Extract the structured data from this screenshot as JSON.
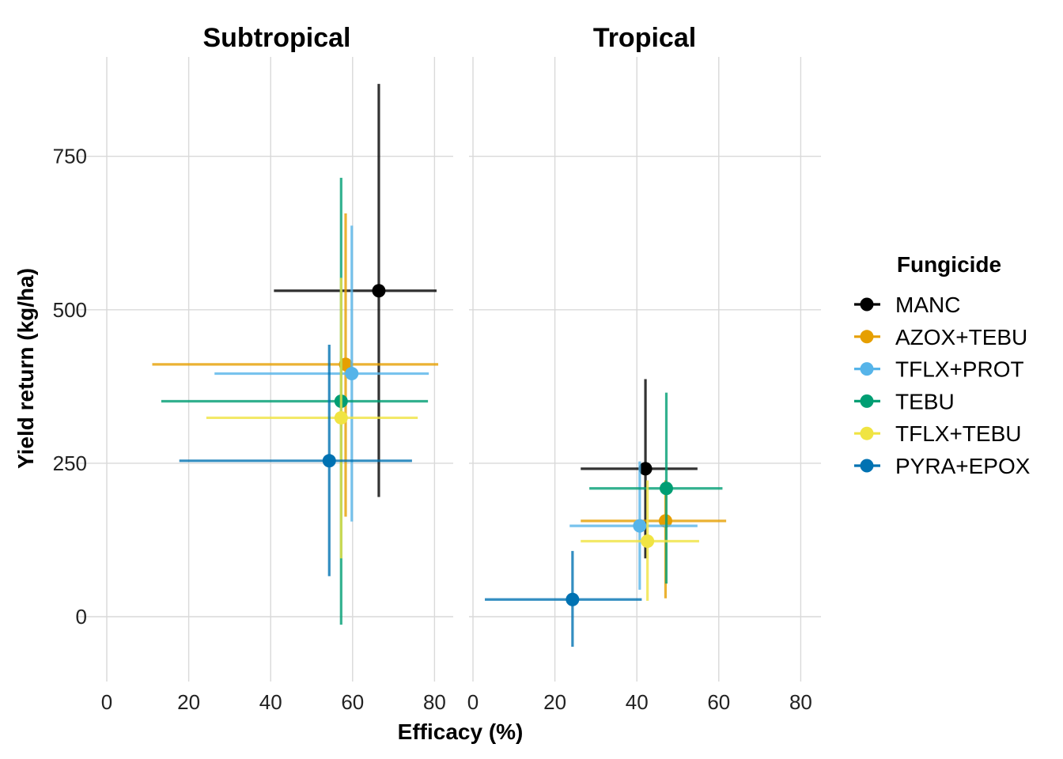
{
  "chart_data": {
    "type": "scatter",
    "facet_variable": "region",
    "panels": [
      "Subtropical",
      "Tropical"
    ],
    "xlabel": "Efficacy (%)",
    "ylabel": "Yield return (kg/ha)",
    "xlim": [
      0,
      85
    ],
    "ylim": [
      -100,
      900
    ],
    "xticks": [
      0,
      20,
      40,
      60,
      80
    ],
    "yticks": [
      0,
      250,
      500,
      750
    ],
    "grid": true,
    "legend": {
      "title": "Fungicide",
      "position": "right"
    },
    "series": [
      {
        "name": "MANC",
        "color": "#000000",
        "points": [
          {
            "panel": "Subtropical",
            "x": 66.4,
            "y": 531,
            "xmin": 40.8,
            "xmax": 80.5,
            "ymin": 195,
            "ymax": 868
          },
          {
            "panel": "Tropical",
            "x": 42.1,
            "y": 241,
            "xmin": 26.3,
            "xmax": 54.8,
            "ymin": 95,
            "ymax": 387
          }
        ]
      },
      {
        "name": "AZOX+TEBU",
        "color": "#E69F00",
        "points": [
          {
            "panel": "Subtropical",
            "x": 58.3,
            "y": 411,
            "xmin": 11.1,
            "xmax": 80.9,
            "ymin": 163,
            "ymax": 657
          },
          {
            "panel": "Tropical",
            "x": 47.0,
            "y": 156,
            "xmin": 26.3,
            "xmax": 61.8,
            "ymin": 30,
            "ymax": 222
          }
        ]
      },
      {
        "name": "TFLX+PROT",
        "color": "#56B4E9",
        "points": [
          {
            "panel": "Subtropical",
            "x": 59.8,
            "y": 396,
            "xmin": 26.3,
            "xmax": 78.6,
            "ymin": 155,
            "ymax": 637
          },
          {
            "panel": "Tropical",
            "x": 40.7,
            "y": 148,
            "xmin": 23.6,
            "xmax": 54.8,
            "ymin": 44,
            "ymax": 253
          }
        ]
      },
      {
        "name": "TEBU",
        "color": "#009E73",
        "points": [
          {
            "panel": "Subtropical",
            "x": 57.2,
            "y": 351,
            "xmin": 13.3,
            "xmax": 78.4,
            "ymin": -13,
            "ymax": 715
          },
          {
            "panel": "Tropical",
            "x": 47.2,
            "y": 209,
            "xmin": 28.4,
            "xmax": 60.9,
            "ymin": 54,
            "ymax": 365
          }
        ]
      },
      {
        "name": "TFLX+TEBU",
        "color": "#F0E442",
        "points": [
          {
            "panel": "Subtropical",
            "x": 57.2,
            "y": 324,
            "xmin": 24.3,
            "xmax": 75.9,
            "ymin": 95,
            "ymax": 552
          },
          {
            "panel": "Tropical",
            "x": 42.6,
            "y": 123,
            "xmin": 26.3,
            "xmax": 55.2,
            "ymin": 26,
            "ymax": 222
          }
        ]
      },
      {
        "name": "PYRA+EPOX",
        "color": "#0072B2",
        "points": [
          {
            "panel": "Subtropical",
            "x": 54.3,
            "y": 254,
            "xmin": 17.7,
            "xmax": 74.5,
            "ymin": 66,
            "ymax": 443
          },
          {
            "panel": "Tropical",
            "x": 24.3,
            "y": 28,
            "xmin": 2.9,
            "xmax": 41.2,
            "ymin": -49,
            "ymax": 107
          }
        ]
      }
    ]
  }
}
